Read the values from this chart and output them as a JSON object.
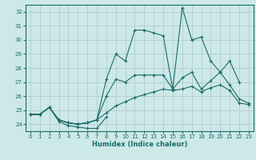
{
  "xlabel": "Humidex (Indice chaleur)",
  "bg_color": "#cde8e8",
  "grid_color": "#b0cccc",
  "line_color": "#1a6b6b",
  "xlim": [
    -0.5,
    23.5
  ],
  "ylim": [
    23.5,
    32.5
  ],
  "yticks": [
    24,
    25,
    26,
    27,
    28,
    29,
    30,
    31,
    32
  ],
  "xticks": [
    0,
    1,
    2,
    3,
    4,
    5,
    6,
    7,
    8,
    9,
    10,
    11,
    12,
    13,
    14,
    15,
    16,
    17,
    18,
    19,
    20,
    21,
    22,
    23
  ],
  "series": [
    {
      "x": [
        0,
        1,
        2,
        3,
        4,
        5,
        6,
        7,
        8
      ],
      "y": [
        24.7,
        24.7,
        25.2,
        24.2,
        23.9,
        23.8,
        23.7,
        23.7,
        24.5
      ]
    },
    {
      "x": [
        0,
        1,
        2,
        3,
        4,
        5,
        6,
        7,
        8,
        9,
        10,
        11,
        12,
        13,
        14,
        15,
        16,
        17,
        18,
        19,
        20,
        21,
        22,
        23
      ],
      "y": [
        24.7,
        24.7,
        25.2,
        24.3,
        24.1,
        24.0,
        24.1,
        24.3,
        24.8,
        25.3,
        25.6,
        25.9,
        26.1,
        26.3,
        26.5,
        26.4,
        26.5,
        26.7,
        26.3,
        26.6,
        26.8,
        26.4,
        25.5,
        25.4
      ]
    },
    {
      "x": [
        0,
        1,
        2,
        3,
        4,
        5,
        6,
        7,
        8,
        9,
        10,
        11,
        12,
        13,
        14,
        15,
        16,
        17,
        18,
        19,
        20,
        21,
        22,
        23
      ],
      "y": [
        24.7,
        24.7,
        25.2,
        24.3,
        24.1,
        24.0,
        24.1,
        24.3,
        26.0,
        27.2,
        27.0,
        27.5,
        27.5,
        27.5,
        27.5,
        26.5,
        27.3,
        27.7,
        26.5,
        27.1,
        27.7,
        26.8,
        25.8,
        25.5
      ]
    },
    {
      "x": [
        0,
        1,
        2,
        3,
        4,
        5,
        6,
        7,
        8,
        9,
        10,
        11,
        12,
        13,
        14,
        15,
        16,
        17,
        18,
        19,
        20,
        21,
        22
      ],
      "y": [
        24.7,
        24.7,
        25.2,
        24.3,
        24.1,
        24.0,
        24.1,
        24.3,
        27.2,
        29.0,
        28.5,
        30.7,
        30.7,
        30.5,
        30.3,
        26.5,
        32.3,
        30.0,
        30.2,
        28.5,
        27.7,
        28.5,
        27.0
      ]
    }
  ]
}
